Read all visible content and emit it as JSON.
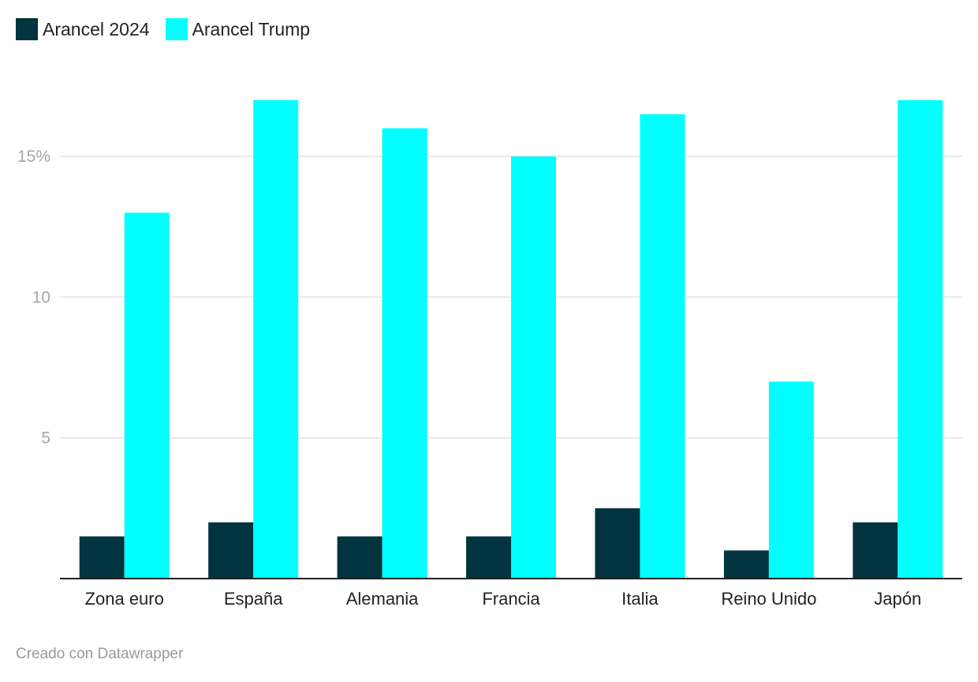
{
  "chart_data": {
    "type": "bar",
    "categories": [
      "Zona euro",
      "España",
      "Alemania",
      "Francia",
      "Italia",
      "Reino Unido",
      "Japón"
    ],
    "series": [
      {
        "name": "Arancel 2024",
        "color": "#02343f",
        "values": [
          1.5,
          2.0,
          1.5,
          1.5,
          2.5,
          1.0,
          2.0
        ]
      },
      {
        "name": "Arancel Trump",
        "color": "#00ffff",
        "values": [
          13.0,
          17.0,
          16.0,
          15.0,
          16.5,
          7.0,
          17.0
        ]
      }
    ],
    "ylim": [
      0,
      18
    ],
    "yticks": [
      {
        "value": 5,
        "label": "5"
      },
      {
        "value": 10,
        "label": "10"
      },
      {
        "value": 15,
        "label": "15%"
      }
    ],
    "grid": true,
    "legend": "top-left"
  },
  "credit": "Creado con Datawrapper"
}
